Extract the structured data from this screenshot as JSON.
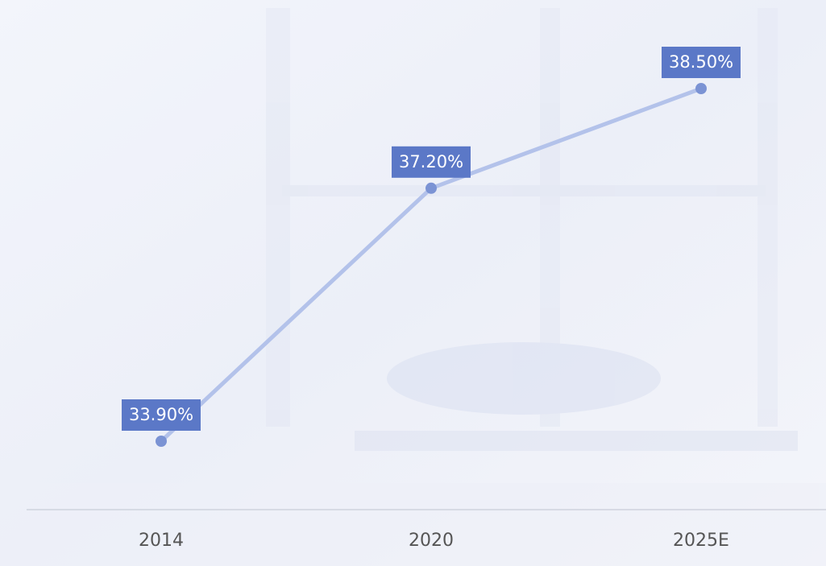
{
  "chart_data": {
    "type": "line",
    "categories": [
      "2014",
      "2020",
      "2025E"
    ],
    "series": [
      {
        "color": "#b3c2ea",
        "values": [
          33.9,
          37.2,
          38.5
        ],
        "value_labels": [
          "33.90%",
          "37.20%",
          "38.50%"
        ]
      }
    ]
  }
}
